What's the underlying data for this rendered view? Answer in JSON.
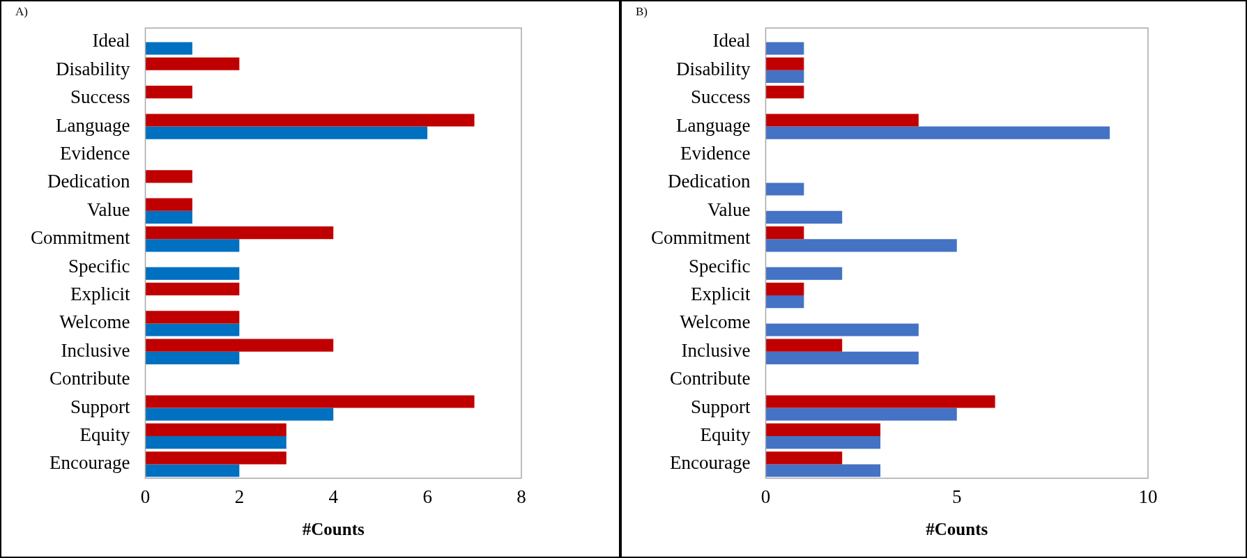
{
  "chart_data": [
    {
      "type": "bar",
      "orientation": "horizontal",
      "title": "A)",
      "xlabel": "#Counts",
      "categories": [
        "Ideal",
        "Disability",
        "Success",
        "Language",
        "Evidence",
        "Dedication",
        "Value",
        "Commitment",
        "Specific",
        "Explicit",
        "Welcome",
        "Inclusive",
        "Contribute",
        "Support",
        "Equity",
        "Encourage"
      ],
      "series": [
        {
          "color": "#c00000",
          "values": [
            0,
            2,
            1,
            7,
            0,
            1,
            1,
            4,
            0,
            2,
            2,
            4,
            0,
            7,
            3,
            3
          ]
        },
        {
          "color": "#0070c0",
          "values": [
            1,
            0,
            0,
            6,
            0,
            0,
            1,
            2,
            2,
            0,
            2,
            2,
            0,
            4,
            3,
            2
          ]
        }
      ],
      "xlim": [
        0,
        8
      ],
      "xticks": [
        0,
        2,
        4,
        6,
        8
      ]
    },
    {
      "type": "bar",
      "orientation": "horizontal",
      "title": "B)",
      "xlabel": "#Counts",
      "categories": [
        "Ideal",
        "Disability",
        "Success",
        "Language",
        "Evidence",
        "Dedication",
        "Value",
        "Commitment",
        "Specific",
        "Explicit",
        "Welcome",
        "Inclusive",
        "Contribute",
        "Support",
        "Equity",
        "Encourage"
      ],
      "series": [
        {
          "color": "#c00000",
          "values": [
            0,
            1,
            1,
            4,
            0,
            0,
            0,
            1,
            0,
            1,
            0,
            2,
            0,
            6,
            3,
            2
          ]
        },
        {
          "color": "#4472c4",
          "values": [
            1,
            1,
            0,
            9,
            0,
            1,
            2,
            5,
            2,
            1,
            4,
            4,
            0,
            5,
            3,
            3
          ]
        }
      ],
      "xlim": [
        0,
        10
      ],
      "xticks": [
        0,
        5,
        10
      ]
    }
  ]
}
